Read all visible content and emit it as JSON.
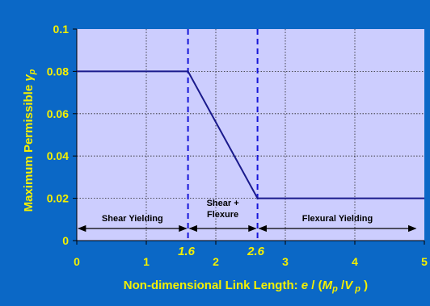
{
  "chart_data": {
    "type": "line",
    "title": "",
    "xlabel": "Non-dimensional Link Length: e / (M p /V p )",
    "xlabel_parts": {
      "lead": "Non-dimensional Link Length: ",
      "e": "e",
      "slash": " / (",
      "M": "M",
      "p1": "p",
      "mid": " /",
      "V": "V",
      "p2": " p",
      "close": " )"
    },
    "ylabel": "Maximum Permissible γp",
    "ylabel_parts": {
      "lead": "Maximum Permissible ",
      "gamma": "γ",
      "sub": "p"
    },
    "xlim": [
      0,
      5
    ],
    "ylim": [
      0,
      0.1
    ],
    "x_ticks": [
      0,
      1,
      2,
      3,
      4,
      5
    ],
    "x_tick_labels": [
      "0",
      "1",
      "2",
      "3",
      "4",
      "5"
    ],
    "y_ticks": [
      0,
      0.02,
      0.04,
      0.06,
      0.08,
      0.1
    ],
    "y_tick_labels": [
      "0",
      "0.02",
      "0.04",
      "0.06",
      "0.08",
      "0.1"
    ],
    "grid": true,
    "series": [
      {
        "x": [
          0,
          1.6,
          2.6,
          5
        ],
        "y": [
          0.08,
          0.08,
          0.02,
          0.02
        ]
      }
    ],
    "vertical_lines": [
      {
        "x": 1.6,
        "label": "1.6"
      },
      {
        "x": 2.6,
        "label": "2.6"
      }
    ],
    "regions": [
      {
        "from": 0,
        "to": 1.6,
        "label_lines": [
          "Shear Yielding"
        ]
      },
      {
        "from": 1.6,
        "to": 2.6,
        "label_lines": [
          "Shear +",
          "Flexure"
        ]
      },
      {
        "from": 2.6,
        "to": 4.9,
        "label_lines": [
          "Flexural Yielding"
        ]
      }
    ],
    "colors": {
      "background": "#0b68c6",
      "plot_area": "#cccdfe",
      "line": "#1a1a8c",
      "dashed": "#1515d8",
      "text": "#f4f000"
    }
  }
}
